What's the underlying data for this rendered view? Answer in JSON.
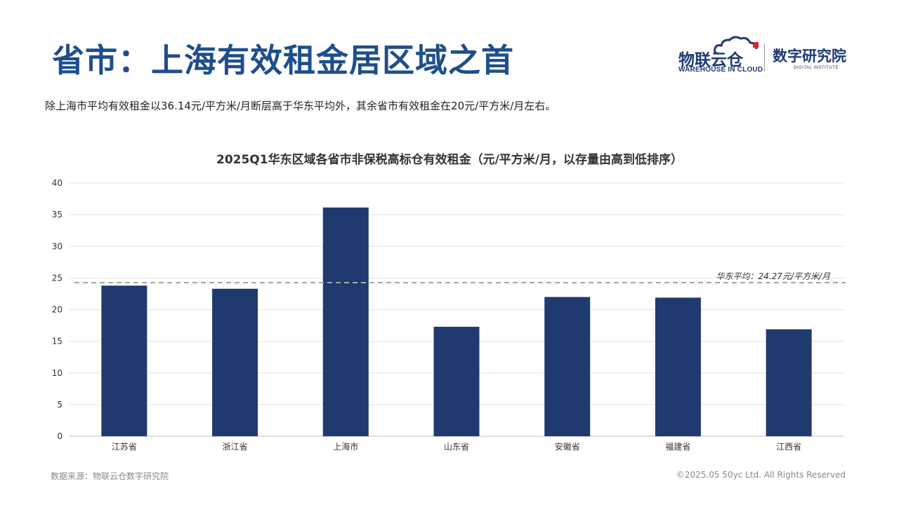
{
  "header": {
    "title": "省市：上海有效租金居区域之首",
    "subtitle": "除上海市平均有效租金以36.14元/平方米/月断层高于华东平均外，其余省市有效租金在20元/平方米/月左右。"
  },
  "logos": {
    "primary_name": "物联云仓",
    "primary_tagline": "WAREHOUSE IN CLOUD",
    "secondary_name": "数字研究院",
    "secondary_tagline": "DIGITAL INSTITUTE"
  },
  "chart_data": {
    "type": "bar",
    "title": "2025Q1华东区域各省市非保税高标仓有效租金（元/平方米/月，以存量由高到低排序）",
    "categories": [
      "江苏省",
      "浙江省",
      "上海市",
      "山东省",
      "安徽省",
      "福建省",
      "江西省"
    ],
    "values": [
      23.8,
      23.3,
      36.14,
      17.3,
      22.0,
      21.9,
      16.9
    ],
    "ylim": [
      0,
      40
    ],
    "yticks": [
      0,
      5,
      10,
      15,
      20,
      25,
      30,
      35,
      40
    ],
    "grid": true,
    "bar_color": "#1f3a6e",
    "reference_line": {
      "value": 24.27,
      "label": "华东平均：24.27元/平方米/月",
      "style": "dashed",
      "color": "#a6a6a6"
    }
  },
  "footer": {
    "source": "数据来源：物联云仓数字研究院",
    "copyright": "©2025.05 50yc Ltd. All Rights Reserved"
  }
}
